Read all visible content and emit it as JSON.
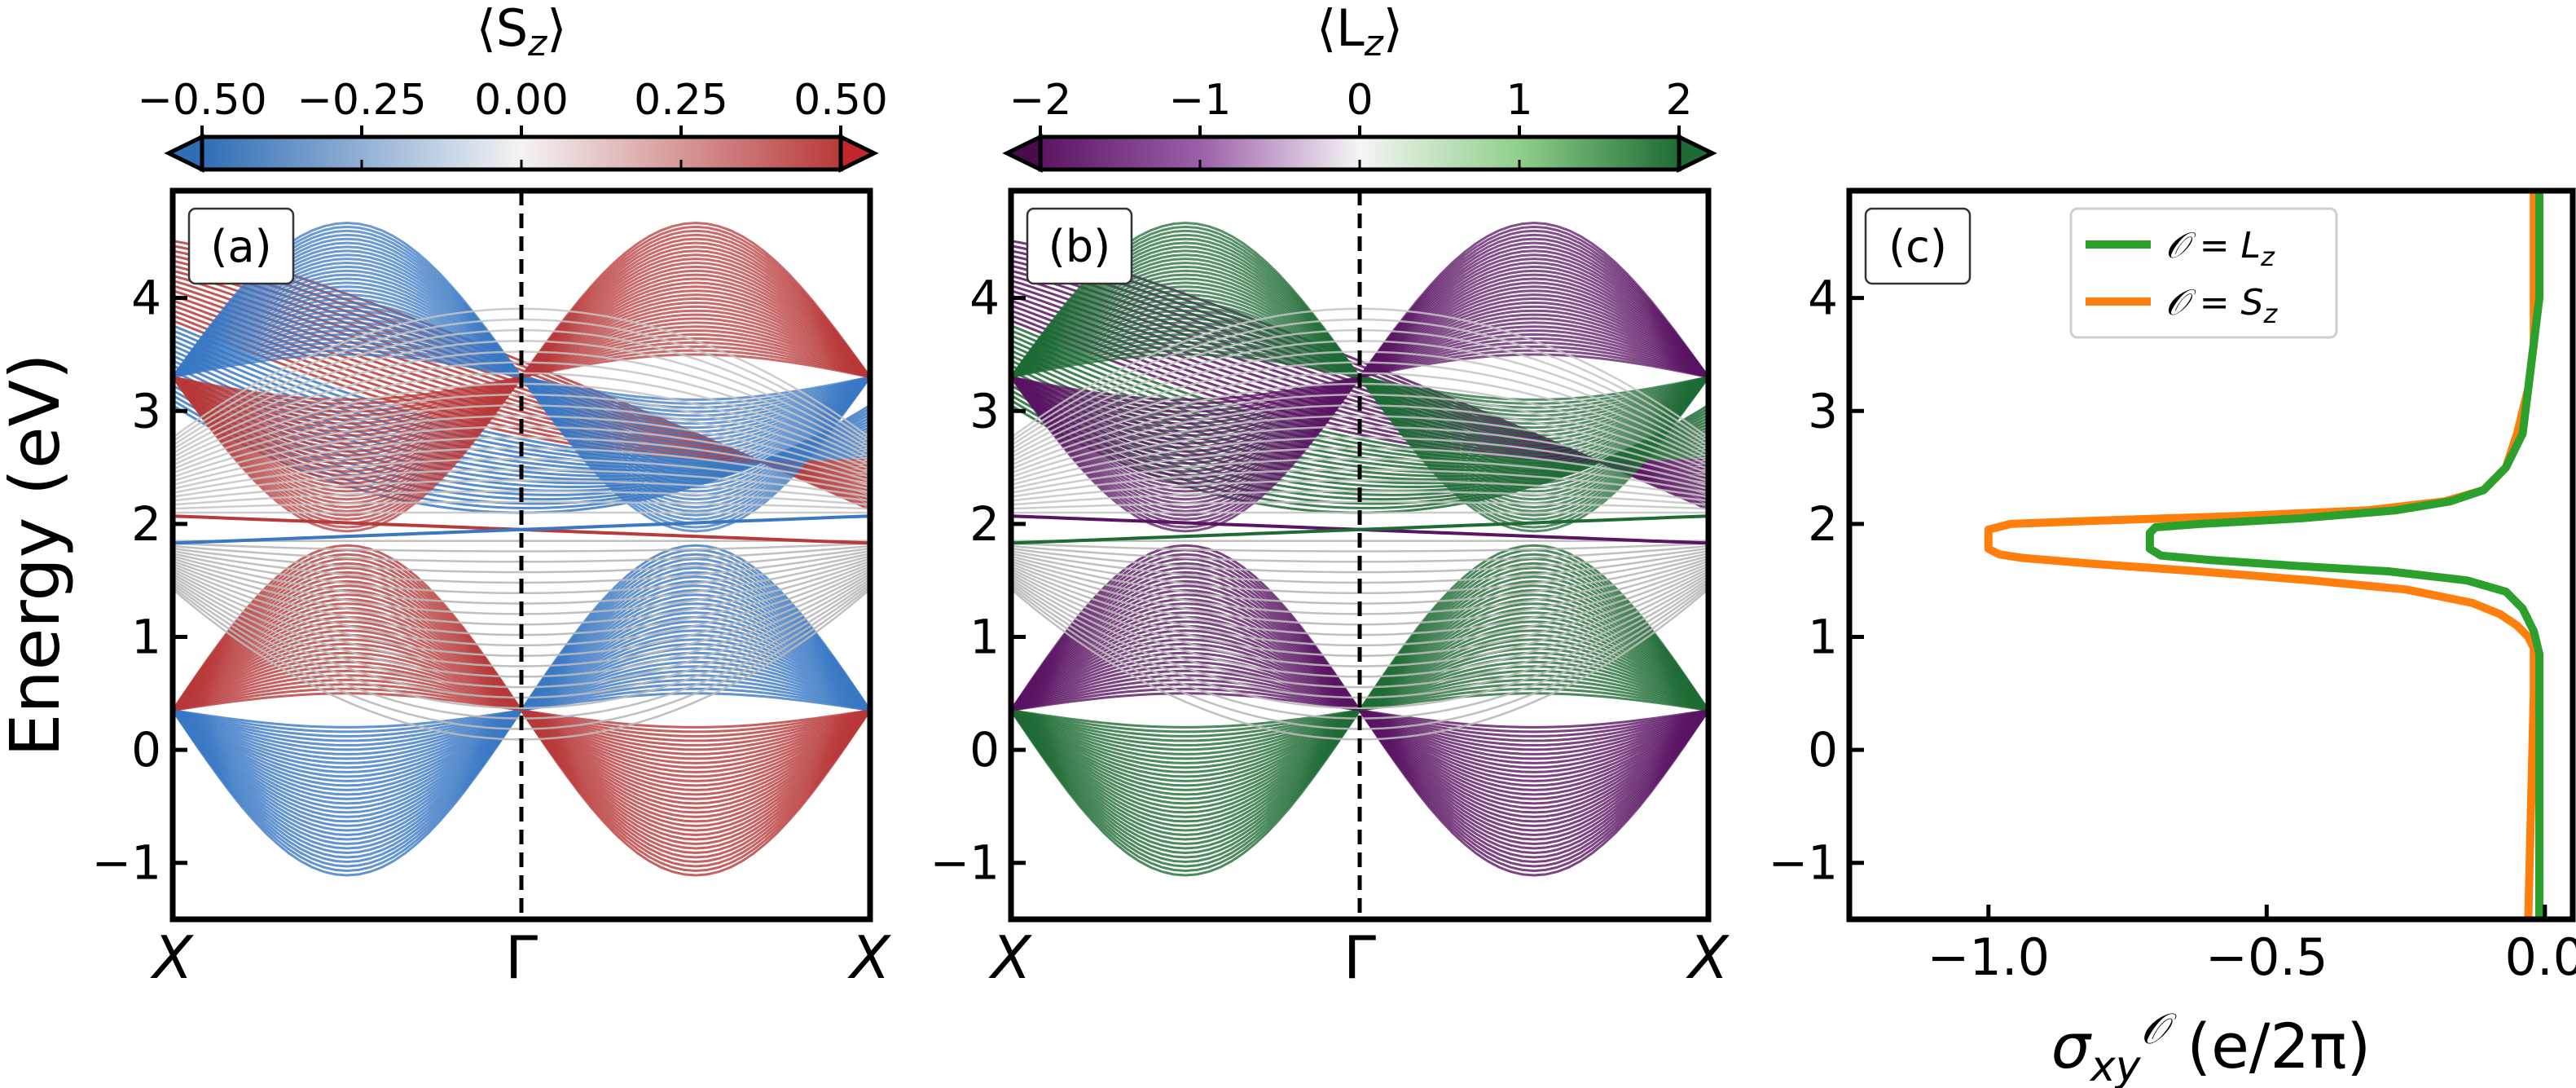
{
  "figure": {
    "ylabel": "Energy (eV)"
  },
  "chart_data": [
    {
      "type": "line",
      "panel_label": "(a)",
      "ylim": [
        -1.5,
        4.95
      ],
      "y_ticks": [
        "4",
        "3",
        "2",
        "1",
        "0",
        "−1"
      ],
      "y_tick_values": [
        4,
        3,
        2,
        1,
        0,
        -1
      ],
      "x_ticks": [
        "X",
        "Γ",
        "X"
      ],
      "colorbar": {
        "label": "⟨S_z⟩",
        "label_main": "⟨S",
        "label_sub": "z",
        "label_close": "⟩",
        "ticks": [
          "−0.50",
          "−0.25",
          "0.00",
          "0.25",
          "0.50"
        ],
        "tick_values": [
          -0.5,
          -0.25,
          0,
          0.25,
          0.5
        ],
        "range": [
          -0.5,
          0.5
        ],
        "colors": [
          "#c1272d",
          "#2f6db5",
          "#3a78c4",
          "#f4f4f4",
          "#b83a3a"
        ]
      },
      "bands": "dense slab band structure: conduction bands 2–4.6 eV, valence bands −1.2–1.85 eV, edge states crossing gap ~1.8–2.1 eV"
    },
    {
      "type": "line",
      "panel_label": "(b)",
      "ylim": [
        -1.5,
        4.95
      ],
      "y_ticks": [
        "4",
        "3",
        "2",
        "1",
        "0",
        "−1"
      ],
      "y_tick_values": [
        4,
        3,
        2,
        1,
        0,
        -1
      ],
      "x_ticks": [
        "X",
        "Γ",
        "X"
      ],
      "colorbar": {
        "label": "⟨L_z⟩",
        "label_main": "⟨L",
        "label_sub": "z",
        "label_close": "⟩",
        "ticks": [
          "−2",
          "−1",
          "0",
          "1",
          "2"
        ],
        "tick_values": [
          -2,
          -1,
          0,
          1,
          2
        ],
        "range": [
          -2,
          2
        ],
        "colors": [
          "#4a0a4e",
          "#5a1463",
          "#7b3f8f",
          "#f5f5f5",
          "#1f6b35"
        ]
      },
      "bands": "same band structure as (a), colored by orbital angular momentum"
    },
    {
      "type": "line",
      "panel_label": "(c)",
      "ylim": [
        -1.5,
        4.95
      ],
      "xlim": [
        -1.25,
        0.05
      ],
      "y_ticks": [
        "4",
        "3",
        "2",
        "1",
        "0",
        "−1"
      ],
      "y_tick_values": [
        4,
        3,
        2,
        1,
        0,
        -1
      ],
      "x_ticks": [
        "−1.0",
        "−0.5",
        "0.0"
      ],
      "x_tick_values": [
        -1.0,
        -0.5,
        0.0
      ],
      "xlabel": "σ_xy^O (e/2π)",
      "xlabel_parts": {
        "sigma": "σ",
        "sub": "xy",
        "sup": "𝒪",
        "unit": " (e/2π)"
      },
      "legend_position": "top-center",
      "series": [
        {
          "name": "𝒪 = L_z",
          "name_main": "𝒪 = L",
          "name_sub": "z",
          "color": "#2ca02c",
          "energy": [
            -1.5,
            0.5,
            0.85,
            1.05,
            1.25,
            1.4,
            1.5,
            1.58,
            1.63,
            1.68,
            1.72,
            1.78,
            1.92,
            1.97,
            2.0,
            2.05,
            2.12,
            2.2,
            2.3,
            2.5,
            2.8,
            3.2,
            3.6,
            4.0,
            4.95
          ],
          "sigma": [
            -0.01,
            -0.01,
            -0.01,
            -0.02,
            -0.04,
            -0.07,
            -0.14,
            -0.28,
            -0.45,
            -0.6,
            -0.69,
            -0.71,
            -0.71,
            -0.7,
            -0.62,
            -0.44,
            -0.27,
            -0.17,
            -0.11,
            -0.07,
            -0.04,
            -0.03,
            -0.02,
            -0.01,
            -0.01
          ]
        },
        {
          "name": "𝒪 = S_z",
          "name_main": "𝒪 = S",
          "name_sub": "z",
          "color": "#ff7f0e",
          "energy": [
            -1.5,
            0.5,
            0.9,
            1.0,
            1.1,
            1.2,
            1.3,
            1.42,
            1.5,
            1.58,
            1.65,
            1.7,
            1.73,
            1.78,
            1.95,
            2.0,
            2.03,
            2.07,
            2.12,
            2.2,
            2.3,
            2.5,
            2.8,
            3.2,
            3.6,
            4.0,
            4.95
          ],
          "sigma": [
            -0.03,
            -0.02,
            -0.02,
            -0.03,
            -0.05,
            -0.08,
            -0.13,
            -0.25,
            -0.42,
            -0.62,
            -0.82,
            -0.94,
            -0.98,
            -1.0,
            -1.0,
            -0.96,
            -0.8,
            -0.55,
            -0.32,
            -0.18,
            -0.11,
            -0.07,
            -0.05,
            -0.03,
            -0.02,
            -0.02,
            -0.02
          ]
        }
      ]
    }
  ]
}
